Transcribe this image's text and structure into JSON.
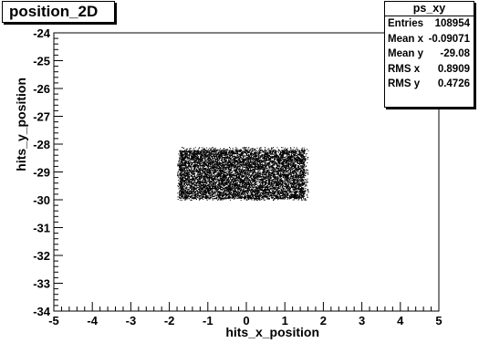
{
  "title": "position_2D",
  "stats": {
    "name": "ps_xy",
    "rows": [
      {
        "label": "Entries",
        "value": "108954"
      },
      {
        "label": "Mean x",
        "value": "-0.09071"
      },
      {
        "label": "Mean y",
        "value": "-29.08"
      },
      {
        "label": "RMS x",
        "value": "0.8909"
      },
      {
        "label": "RMS y",
        "value": "0.4726"
      }
    ]
  },
  "chart_data": {
    "type": "scatter",
    "title": "position_2D",
    "xlabel": "hits_x_position",
    "ylabel": "hits_y_position",
    "xlim": [
      -5,
      5
    ],
    "ylim": [
      -34,
      -24
    ],
    "x_ticks": [
      "-5",
      "-4",
      "-3",
      "-2",
      "-1",
      "0",
      "1",
      "2",
      "3",
      "4",
      "5"
    ],
    "y_ticks": [
      "-24",
      "-25",
      "-26",
      "-27",
      "-28",
      "-29",
      "-30",
      "-31",
      "-32",
      "-33",
      "-34"
    ],
    "x_tick_values": [
      -5,
      -4,
      -3,
      -2,
      -1,
      0,
      1,
      2,
      3,
      4,
      5
    ],
    "y_tick_values": [
      -24,
      -25,
      -26,
      -27,
      -28,
      -29,
      -30,
      -31,
      -32,
      -33,
      -34
    ],
    "region": {
      "x": [
        -1.8,
        1.6
      ],
      "y": [
        -30.0,
        -28.1
      ]
    },
    "dense_core": {
      "x": [
        -1.75,
        1.5
      ],
      "y": [
        -29.95,
        -28.2
      ]
    },
    "mean": {
      "x": -0.09071,
      "y": -29.08
    },
    "rms": {
      "x": 0.8909,
      "y": 0.4726
    },
    "entries": 108954,
    "grid": false,
    "legend": "top-right",
    "color": "#000000"
  }
}
